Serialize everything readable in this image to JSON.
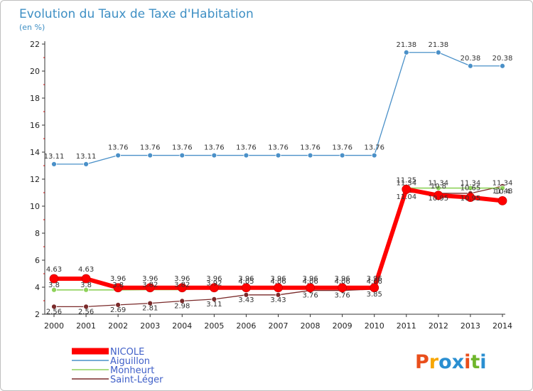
{
  "chart_data": {
    "type": "line",
    "title": "Evolution du Taux de Taxe d'Habitation",
    "subtitle": "(en %)",
    "x": [
      "2000",
      "2001",
      "2002",
      "2003",
      "2004",
      "2005",
      "2006",
      "2007",
      "2008",
      "2009",
      "2010",
      "2011",
      "2012",
      "2013",
      "2014"
    ],
    "ylim": [
      2,
      22
    ],
    "yticks": [
      2,
      4,
      6,
      8,
      10,
      12,
      14,
      16,
      18,
      20,
      22
    ],
    "grid": false,
    "legend_position": "bottom-left",
    "series": [
      {
        "name": "NICOLE",
        "color": "#ff0000",
        "values": [
          4.63,
          4.63,
          3.96,
          3.96,
          3.96,
          3.96,
          3.96,
          3.96,
          3.96,
          3.96,
          3.96,
          11.25,
          10.8,
          10.65,
          10.4
        ]
      },
      {
        "name": "Aiguillon",
        "color": "#4a90c8",
        "values": [
          13.11,
          13.11,
          13.76,
          13.76,
          13.76,
          13.76,
          13.76,
          13.76,
          13.76,
          13.76,
          13.76,
          21.38,
          21.38,
          20.38,
          20.38
        ]
      },
      {
        "name": "Monheurt",
        "color": "#8ed25a",
        "values": [
          3.8,
          3.8,
          3.8,
          3.82,
          3.82,
          3.92,
          4.05,
          4.06,
          4.06,
          4.06,
          4.06,
          11.34,
          11.34,
          11.34,
          11.34
        ]
      },
      {
        "name": "Saint-Léger",
        "color": "#7a2a2a",
        "values": [
          2.56,
          2.56,
          2.69,
          2.81,
          2.98,
          3.11,
          3.43,
          3.43,
          3.76,
          3.76,
          3.85,
          11.04,
          10.95,
          10.95,
          11.48
        ]
      }
    ],
    "data_labels": {
      "NICOLE": [
        "4.63",
        "4.63",
        "3.96",
        "3.96",
        "3.96",
        "3.96",
        "3.96",
        "3.96",
        "3.96",
        "3.96",
        "3.96",
        "11.25",
        "10.8",
        "10.65",
        "10.4"
      ],
      "Aiguillon": [
        "13.11",
        "13.11",
        "13.76",
        "13.76",
        "13.76",
        "13.76",
        "13.76",
        "13.76",
        "13.76",
        "13.76",
        "13.76",
        "21.38",
        "21.38",
        "20.38",
        "20.38"
      ],
      "Monheurt": [
        "3.8",
        "3.8",
        "3.8",
        "3.82",
        "3.82",
        "3.92",
        "4.05",
        "4.06",
        "4.06",
        "4.06",
        "4.06",
        "11.34",
        "11.34",
        "11.34",
        "11.34"
      ],
      "Saint-Léger": [
        "2.56",
        "2.56",
        "2.69",
        "2.81",
        "2.98",
        "3.11",
        "3.43",
        "3.43",
        "3.76",
        "3.76",
        "3.85",
        "11.04",
        "10.95",
        "10.95",
        "11.48"
      ]
    }
  },
  "branding": {
    "logo_text": "Proxiti",
    "logo_colors": [
      "#e94e1b",
      "#f7a600",
      "#2a8fd1",
      "#2a8fd1",
      "#e94e1b",
      "#6fb62c",
      "#2a8fd1"
    ]
  }
}
